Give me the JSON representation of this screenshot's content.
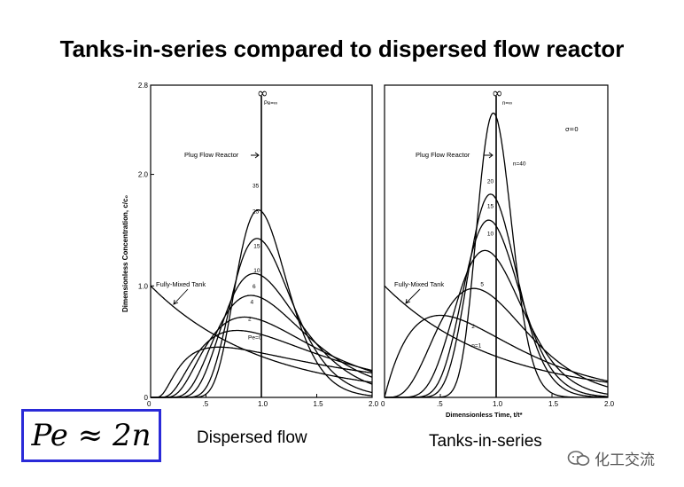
{
  "slide": {
    "title": "Tanks-in-series compared to dispersed flow reactor",
    "formula": "Pe ≈ 2n",
    "left_caption": "Dispersed flow",
    "right_caption": "Tanks-in-series",
    "watermark": "化工交流",
    "watermark_icon": "chat-bubbles-icon"
  },
  "chart_data": [
    {
      "type": "line",
      "title": "",
      "xlabel": "",
      "ylabel": "Dimensionless Concentration, c/c₀",
      "xlim": [
        0,
        2.0
      ],
      "ylim": [
        0,
        2.8
      ],
      "x_ticks": [
        "0",
        ".5",
        "1.0",
        "1.5",
        "2.0"
      ],
      "y_ticks": [
        "0",
        "1.0",
        "2.0",
        "2.8"
      ],
      "infinity_label": "∞",
      "top_label": "Pe=∞",
      "annotations": [
        {
          "text": "Plug Flow Reactor",
          "target": "vertical line at t=1.0"
        },
        {
          "text": "Fully-Mixed Tank",
          "target": "exponential curve"
        }
      ],
      "series": [
        {
          "name": "Pe=0",
          "label_at": [
            0.88,
            0.52
          ]
        },
        {
          "name": "2",
          "label_at": [
            0.88,
            0.69
          ]
        },
        {
          "name": "4",
          "label_at": [
            0.9,
            0.84
          ]
        },
        {
          "name": "6",
          "label_at": [
            0.92,
            0.98
          ]
        },
        {
          "name": "10",
          "label_at": [
            0.93,
            1.12
          ]
        },
        {
          "name": "15",
          "label_at": [
            0.93,
            1.34
          ]
        },
        {
          "name": "25",
          "label_at": [
            0.92,
            1.65
          ]
        },
        {
          "name": "35",
          "label_at": [
            0.92,
            1.88
          ]
        }
      ]
    },
    {
      "type": "line",
      "title": "",
      "xlabel": "Dimensionless Time, t/t*",
      "ylabel": "",
      "xlim": [
        0,
        2.0
      ],
      "ylim": [
        0,
        2.8
      ],
      "x_ticks": [
        "0",
        ".5",
        "1.0",
        "1.5",
        "2.0"
      ],
      "y_ticks": [],
      "infinity_label": "∞",
      "top_label": "n=∞",
      "corner_label": "σ=0",
      "annotations": [
        {
          "text": "Plug Flow Reactor",
          "target": "vertical line at t=1.0"
        },
        {
          "text": "Fully-Mixed Tank",
          "target": "exponential curve"
        }
      ],
      "series": [
        {
          "name": "n=1",
          "label_at": [
            0.78,
            0.45
          ]
        },
        {
          "name": "2",
          "label_at": [
            0.78,
            0.62
          ]
        },
        {
          "name": "5",
          "label_at": [
            0.86,
            1.0
          ]
        },
        {
          "name": "10",
          "label_at": [
            0.92,
            1.45
          ]
        },
        {
          "name": "15",
          "label_at": [
            0.92,
            1.7
          ]
        },
        {
          "name": "20",
          "label_at": [
            0.92,
            1.92
          ]
        },
        {
          "name": "n=40",
          "label_at": [
            1.15,
            2.08
          ]
        }
      ]
    }
  ]
}
